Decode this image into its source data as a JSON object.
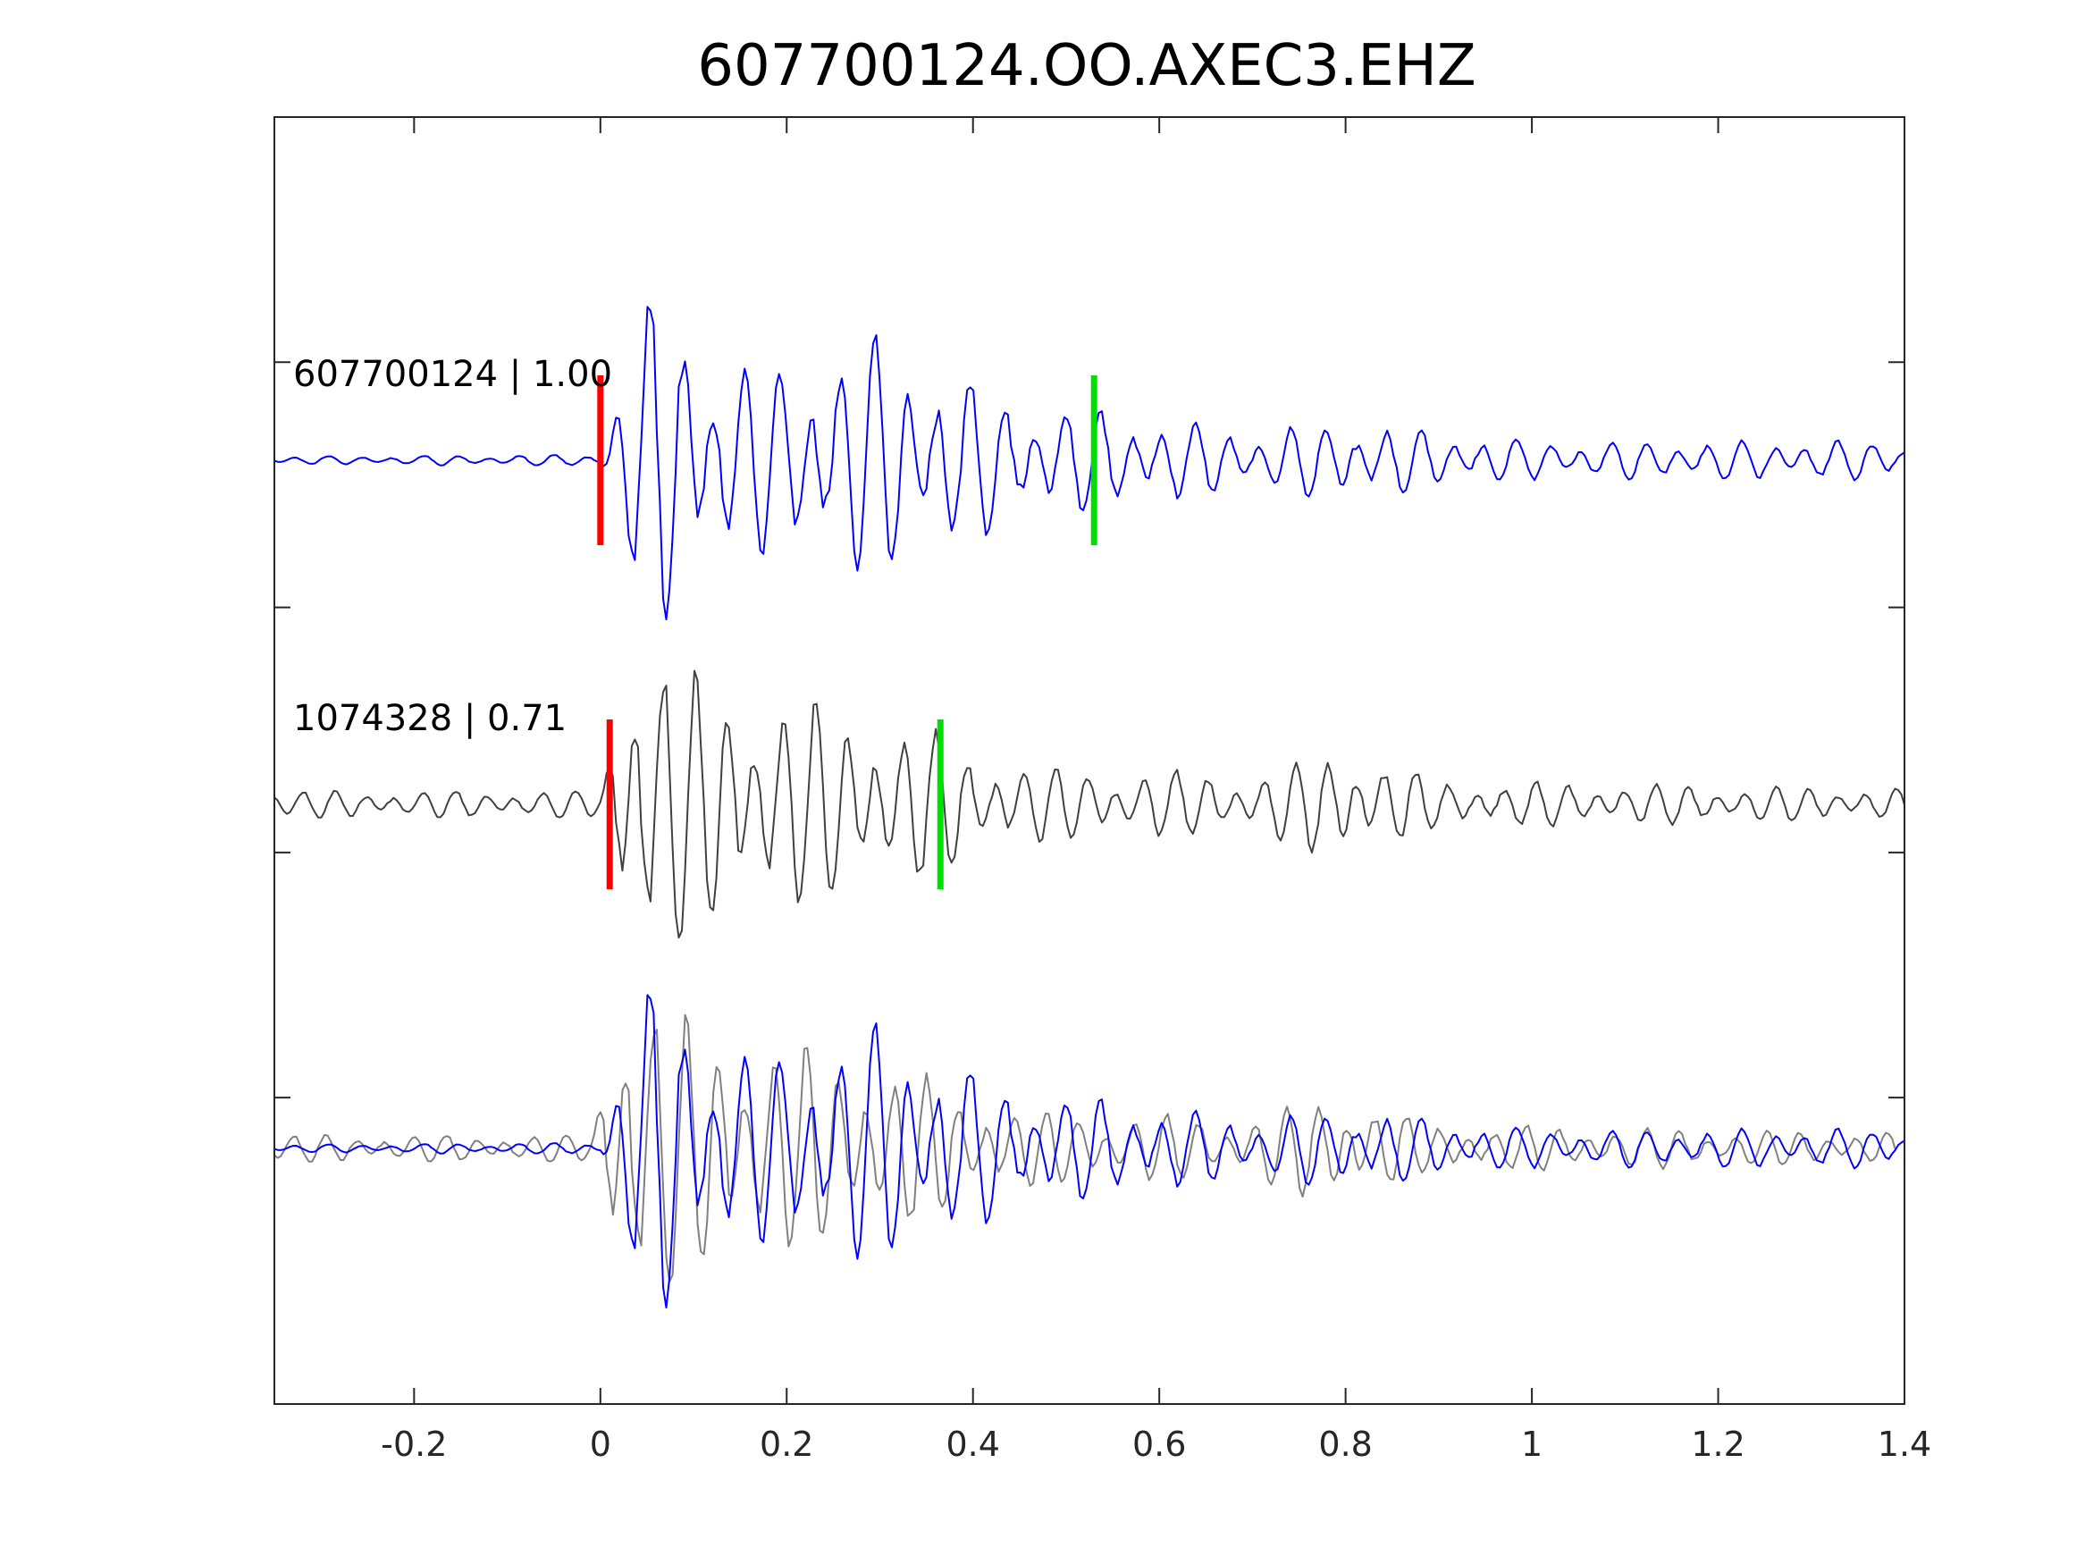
{
  "chart_data": {
    "type": "line",
    "title": "607700124.OO.AXEC3.EHZ",
    "xlabel": "",
    "ylabel": "",
    "xlim": [
      -0.35,
      1.4
    ],
    "xticks": [
      -0.2,
      0,
      0.2,
      0.4,
      0.6,
      0.8,
      1,
      1.2,
      1.4
    ],
    "xtick_labels": [
      "-0.2",
      "0",
      "0.2",
      "0.4",
      "0.6",
      "0.8",
      "1",
      "1.2",
      "1.4"
    ],
    "ytick_count": 4,
    "y_tick_labels_visible": false,
    "grid": false,
    "traces": [
      {
        "label": "607700124 | 1.00",
        "color": "#0000ff",
        "p_pick": 0.0,
        "s_pick": 0.53,
        "envelope": [
          [
            -0.35,
            0.02
          ],
          [
            0.0,
            0.03
          ],
          [
            0.02,
            0.45
          ],
          [
            0.06,
            0.9
          ],
          [
            0.12,
            0.55
          ],
          [
            0.2,
            0.45
          ],
          [
            0.3,
            0.65
          ],
          [
            0.35,
            0.5
          ],
          [
            0.45,
            0.3
          ],
          [
            0.55,
            0.25
          ],
          [
            0.7,
            0.15
          ],
          [
            0.8,
            0.2
          ],
          [
            1.0,
            0.1
          ],
          [
            1.4,
            0.1
          ]
        ]
      },
      {
        "label": "1074328 | 0.71",
        "color": "#404040",
        "p_pick": 0.01,
        "s_pick": 0.365,
        "envelope": [
          [
            -0.35,
            0.07
          ],
          [
            0.0,
            0.07
          ],
          [
            0.02,
            0.7
          ],
          [
            0.04,
            0.9
          ],
          [
            0.1,
            0.65
          ],
          [
            0.15,
            0.6
          ],
          [
            0.25,
            0.5
          ],
          [
            0.33,
            0.4
          ],
          [
            0.37,
            0.35
          ],
          [
            0.45,
            0.2
          ],
          [
            0.55,
            0.18
          ],
          [
            0.7,
            0.15
          ],
          [
            0.8,
            0.3
          ],
          [
            0.9,
            0.12
          ],
          [
            1.4,
            0.08
          ]
        ]
      }
    ],
    "overlay": {
      "series_colors": [
        "#0000ff",
        "#808080"
      ]
    },
    "pick_colors": {
      "p": "#ff0000",
      "s": "#00e000"
    }
  }
}
